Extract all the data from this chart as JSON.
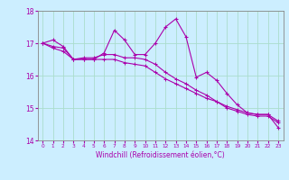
{
  "xlabel": "Windchill (Refroidissement éolien,°C)",
  "ylabel": "",
  "background_color": "#cceeff",
  "grid_color": "#aaddcc",
  "line_color": "#aa00aa",
  "xlim": [
    -0.5,
    23.5
  ],
  "ylim": [
    14,
    18
  ],
  "yticks": [
    14,
    15,
    16,
    17,
    18
  ],
  "xticks": [
    0,
    1,
    2,
    3,
    4,
    5,
    6,
    7,
    8,
    9,
    10,
    11,
    12,
    13,
    14,
    15,
    16,
    17,
    18,
    19,
    20,
    21,
    22,
    23
  ],
  "series1": [
    17.0,
    17.1,
    16.9,
    16.5,
    16.5,
    16.5,
    16.7,
    17.4,
    17.1,
    16.65,
    16.65,
    17.0,
    17.5,
    17.75,
    17.2,
    15.95,
    16.1,
    15.85,
    15.45,
    15.1,
    14.85,
    14.8,
    14.8,
    14.4
  ],
  "series2": [
    17.0,
    16.9,
    16.85,
    16.5,
    16.55,
    16.55,
    16.65,
    16.65,
    16.55,
    16.55,
    16.5,
    16.35,
    16.1,
    15.9,
    15.75,
    15.55,
    15.4,
    15.2,
    15.0,
    14.9,
    14.8,
    14.75,
    14.75,
    14.55
  ],
  "series3": [
    17.0,
    16.85,
    16.75,
    16.5,
    16.5,
    16.5,
    16.5,
    16.5,
    16.4,
    16.35,
    16.3,
    16.1,
    15.9,
    15.75,
    15.6,
    15.45,
    15.3,
    15.2,
    15.05,
    14.95,
    14.85,
    14.8,
    14.8,
    14.6
  ],
  "xlabel_fontsize": 5.5,
  "xtick_fontsize": 4.2,
  "ytick_fontsize": 5.5
}
